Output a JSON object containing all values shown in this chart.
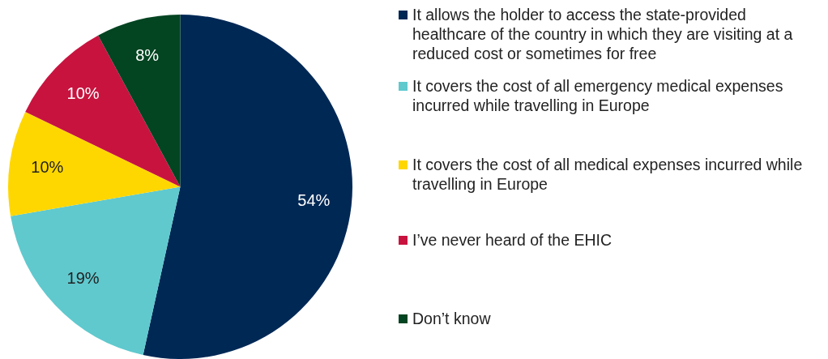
{
  "chart_data": {
    "type": "pie",
    "categories": [
      "It allows the holder to access the state-provided healthcare of the country in which they are visiting at a reduced cost or sometimes for free",
      "It covers the cost of all emergency medical expenses incurred while travelling in Europe",
      "It covers the cost of all medical expenses incurred while travelling in Europe",
      "I’ve never heard of the EHIC",
      "Don’t know"
    ],
    "values": [
      54,
      19,
      10,
      10,
      8
    ],
    "colors": [
      "#002855",
      "#5fc9ce",
      "#ffd700",
      "#c8133f",
      "#034421"
    ],
    "value_labels": [
      "54%",
      "19%",
      "10%",
      "10%",
      "8%"
    ],
    "legend": "right"
  }
}
